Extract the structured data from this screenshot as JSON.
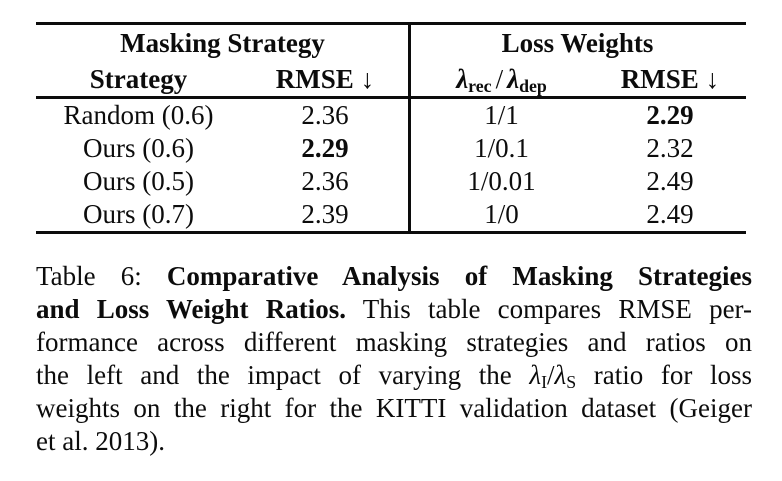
{
  "table": {
    "arrow_down": "↓",
    "masking": {
      "group_header": "Masking Strategy",
      "col_strategy": "Strategy",
      "col_rmse": "RMSE",
      "rows": [
        {
          "strategy": "Random (0.6)",
          "rmse": "2.36",
          "rmse_bold": false
        },
        {
          "strategy": "Ours (0.6)",
          "rmse": "2.29",
          "rmse_bold": true
        },
        {
          "strategy": "Ours (0.5)",
          "rmse": "2.36",
          "rmse_bold": false
        },
        {
          "strategy": "Ours (0.7)",
          "rmse": "2.39",
          "rmse_bold": false
        }
      ]
    },
    "loss": {
      "group_header": "Loss Weights",
      "col_ratio": {
        "lambda": "λ",
        "sub_rec": "rec",
        "slash": "/",
        "sub_dep": "dep"
      },
      "col_rmse": "RMSE",
      "rows": [
        {
          "ratio": "1/1",
          "rmse": "2.29",
          "rmse_bold": true
        },
        {
          "ratio": "1/0.1",
          "rmse": "2.32",
          "rmse_bold": false
        },
        {
          "ratio": "1/0.01",
          "rmse": "2.49",
          "rmse_bold": false
        },
        {
          "ratio": "1/0",
          "rmse": "2.49",
          "rmse_bold": false
        }
      ]
    }
  },
  "caption": {
    "lines": [
      [
        {
          "t": "Table 6: "
        },
        {
          "t": "Comparative Analysis of Masking Strategies",
          "b": true
        }
      ],
      [
        {
          "t": "and Loss Weight Ratios.",
          "b": true
        },
        {
          "t": " This table compares RMSE per-"
        }
      ],
      [
        {
          "t": "formance across different masking strategies and ratios on"
        }
      ],
      [
        {
          "t": "the left and the impact of varying the "
        },
        {
          "t": "λ",
          "i": true
        },
        {
          "t": "I",
          "sub": true
        },
        {
          "t": "/"
        },
        {
          "t": "λ",
          "i": true
        },
        {
          "t": "S",
          "sub": true
        },
        {
          "t": " ratio for loss"
        }
      ],
      [
        {
          "t": "weights on the right for the KITTI validation dataset (Geiger"
        }
      ],
      [
        {
          "t": "et al. 2013)."
        }
      ]
    ]
  }
}
